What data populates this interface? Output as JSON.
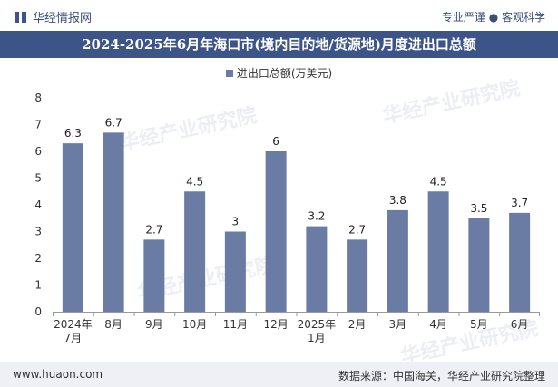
{
  "header": {
    "brand": "华经情报网",
    "tagline": "专业严谨 ● 客观科学"
  },
  "watermarks": [
    "华经产业研究院",
    "华经产业研究院",
    "华经产业研究院",
    "华经产业研究院"
  ],
  "chart_data": {
    "type": "bar",
    "title": "2024-2025年6月年海口市(境内目的地/货源地)月度进出口总额",
    "legend": "进出口总额(万美元)",
    "categories": [
      "2024年\n7月",
      "8月",
      "9月",
      "10月",
      "11月",
      "12月",
      "2025年\n1月",
      "2月",
      "3月",
      "4月",
      "5月",
      "6月"
    ],
    "values": [
      6.3,
      6.7,
      2.7,
      4.5,
      3,
      6,
      3.2,
      2.7,
      3.8,
      4.5,
      3.5,
      3.7
    ],
    "value_labels": [
      "6.3",
      "6.7",
      "2.7",
      "4.5",
      "3",
      "6",
      "3.2",
      "2.7",
      "3.8",
      "4.5",
      "3.5",
      "3.7"
    ],
    "yticks": [
      "0",
      "1",
      "2",
      "3",
      "4",
      "5",
      "6",
      "7",
      "8"
    ],
    "ylim": [
      0,
      8
    ],
    "xlabel": "",
    "ylabel": "",
    "color": "#6a7ba4"
  },
  "footer": {
    "website": "www.huaon.com",
    "source": "数据来源：中国海关，华经产业研究院整理"
  }
}
